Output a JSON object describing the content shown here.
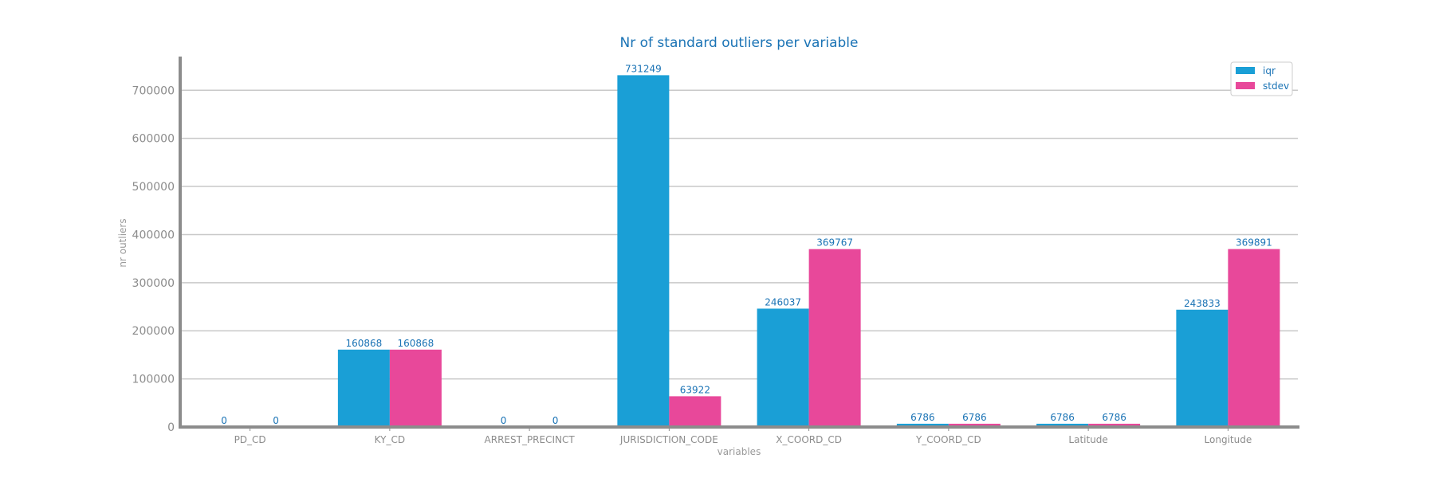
{
  "chart_data": {
    "type": "bar",
    "title": "Nr of standard outliers per variable",
    "xlabel": "variables",
    "ylabel": "nr outliers",
    "categories": [
      "PD_CD",
      "KY_CD",
      "ARREST_PRECINCT",
      "JURISDICTION_CODE",
      "X_COORD_CD",
      "Y_COORD_CD",
      "Latitude",
      "Longitude"
    ],
    "series": [
      {
        "name": "iqr",
        "color": "#1a9fd6",
        "values": [
          0,
          160868,
          0,
          731249,
          246037,
          6786,
          6786,
          243833
        ]
      },
      {
        "name": "stdev",
        "color": "#e8489a",
        "values": [
          0,
          160868,
          0,
          63922,
          369767,
          6786,
          6786,
          369891
        ]
      }
    ],
    "ylim": [
      0,
      770000
    ],
    "yticks": [
      0,
      100000,
      200000,
      300000,
      400000,
      500000,
      600000,
      700000
    ],
    "grid": true,
    "legend_position": "top-right"
  }
}
